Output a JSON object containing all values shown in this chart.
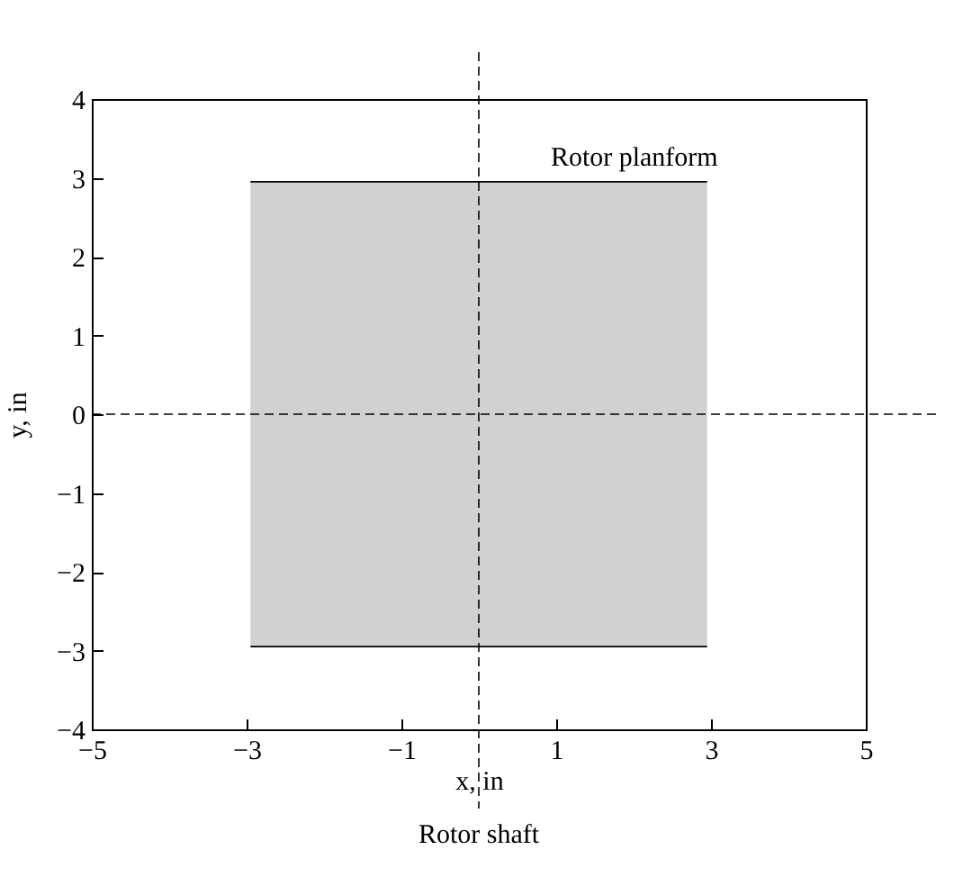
{
  "chart_data": {
    "type": "area",
    "xlabel": "x, in",
    "ylabel": "y, in",
    "xlim": [
      -5,
      5
    ],
    "xticks": [
      -5,
      -3,
      -1,
      1,
      3,
      5
    ],
    "ylim": [
      -4,
      4
    ],
    "yticks": [
      -4,
      -3,
      -2,
      -1,
      0,
      1,
      2,
      3,
      4
    ],
    "x": [
      -2.95,
      2.95
    ],
    "series": [
      {
        "color": "#d0d1d3",
        "values": [
          2.95,
          2.95
        ]
      },
      {
        "color": "#d0d1d3",
        "values": [
          -2.95,
          -2.95
        ]
      }
    ],
    "ref_lines": [
      {
        "axis": "y",
        "value": 0,
        "line_style": "dashed"
      },
      {
        "axis": "x",
        "value": 0,
        "label": "Rotor shaft",
        "line_style": "dashed"
      }
    ],
    "annotations": [
      {
        "text": "Rotor planform",
        "x": 2.95,
        "y": 2.95
      }
    ],
    "grid": false
  }
}
